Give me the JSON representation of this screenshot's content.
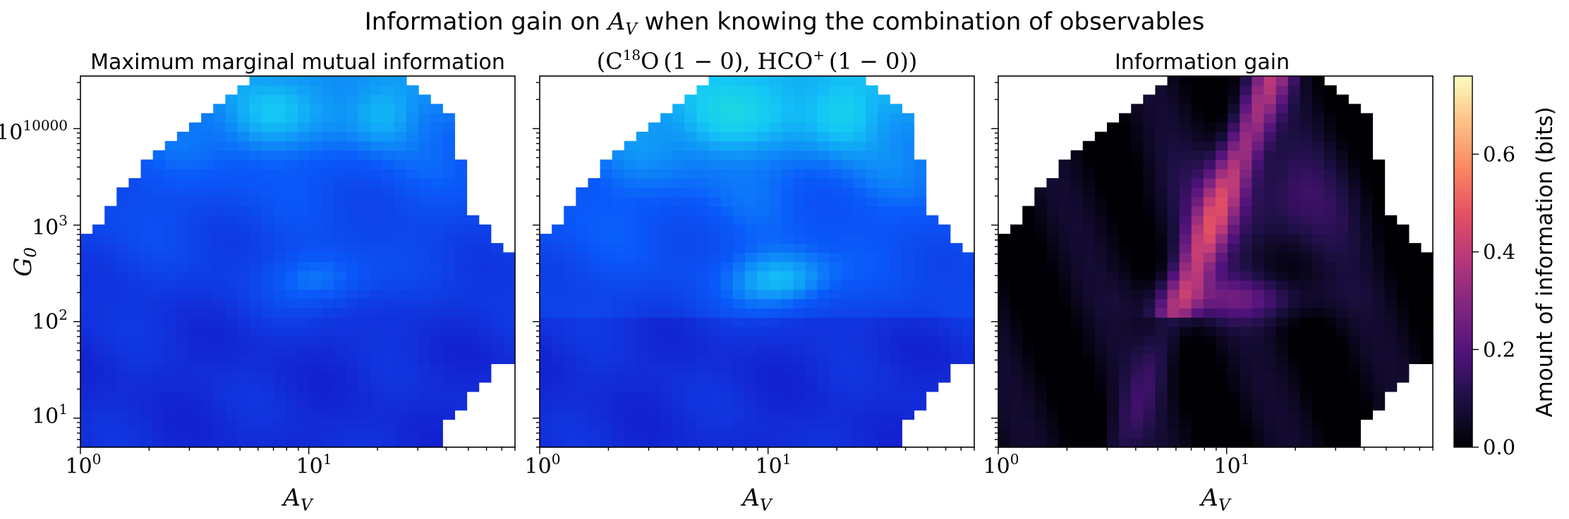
{
  "figure": {
    "suptitle": {
      "prefix": "Information gain on ",
      "symbol": "A",
      "symbol_sub": "V",
      "suffix": " when knowing the combination of observables"
    }
  },
  "chart_data": [
    {
      "type": "heatmap",
      "title": "Maximum marginal mutual information",
      "xlabel": "A_V",
      "ylabel": "G_0",
      "xscale": "log",
      "yscale": "log",
      "xlim": [
        1,
        80
      ],
      "ylim": [
        5,
        35000
      ],
      "xticks": [
        {
          "value": 1,
          "label": "10^0"
        },
        {
          "value": 10,
          "label": "10^1"
        }
      ],
      "yticks": [
        {
          "value": 10,
          "label": "10^1"
        },
        {
          "value": 100,
          "label": "10^2"
        },
        {
          "value": 1000,
          "label": "10^3"
        },
        {
          "value": 10000,
          "label": "10^4"
        }
      ],
      "colormap": "turbo-like (blue to green)",
      "grid": false
    },
    {
      "type": "heatmap",
      "title": "(C18O (1−0), HCO+ (1−0))",
      "title_parts": {
        "open": "(",
        "species1": "C",
        "species1_sup": "18",
        "species1_tail": "O",
        "line1": "(1 − 0)",
        "sep": ", ",
        "species2": "HCO",
        "species2_sup": "+",
        "line2": "(1 − 0)",
        "close": ")"
      },
      "xlabel": "A_V",
      "xscale": "log",
      "yscale": "log",
      "xlim": [
        1,
        80
      ],
      "ylim": [
        5,
        35000
      ],
      "xticks": [
        {
          "value": 1,
          "label": "10^0"
        },
        {
          "value": 10,
          "label": "10^1"
        }
      ],
      "colormap": "turbo-like (blue to green)",
      "grid": false
    },
    {
      "type": "heatmap",
      "title": "Information gain",
      "xlabel": "A_V",
      "xscale": "log",
      "yscale": "log",
      "xlim": [
        1,
        80
      ],
      "ylim": [
        5,
        35000
      ],
      "xticks": [
        {
          "value": 1,
          "label": "10^0"
        },
        {
          "value": 10,
          "label": "10^1"
        }
      ],
      "colormap": "magma",
      "grid": false
    }
  ],
  "colorbar": {
    "label": "Amount of information (bits)",
    "range": [
      0,
      0.76
    ],
    "ticks": [
      {
        "value": 0.0,
        "label": "0.0"
      },
      {
        "value": 0.2,
        "label": "0.2"
      },
      {
        "value": 0.4,
        "label": "0.4"
      },
      {
        "value": 0.6,
        "label": "0.6"
      }
    ]
  }
}
